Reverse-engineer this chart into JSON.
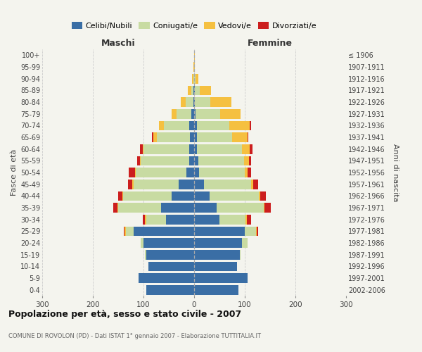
{
  "age_groups": [
    "0-4",
    "5-9",
    "10-14",
    "15-19",
    "20-24",
    "25-29",
    "30-34",
    "35-39",
    "40-44",
    "45-49",
    "50-54",
    "55-59",
    "60-64",
    "65-69",
    "70-74",
    "75-79",
    "80-84",
    "85-89",
    "90-94",
    "95-99",
    "100+"
  ],
  "birth_years": [
    "2002-2006",
    "1997-2001",
    "1992-1996",
    "1987-1991",
    "1982-1986",
    "1977-1981",
    "1972-1976",
    "1967-1971",
    "1962-1966",
    "1957-1961",
    "1952-1956",
    "1947-1951",
    "1942-1946",
    "1937-1941",
    "1932-1936",
    "1927-1931",
    "1922-1926",
    "1917-1921",
    "1912-1916",
    "1907-1911",
    "≤ 1906"
  ],
  "maschi": {
    "celibi": [
      95,
      110,
      90,
      95,
      100,
      120,
      55,
      65,
      45,
      30,
      15,
      10,
      10,
      8,
      10,
      5,
      2,
      1,
      0,
      0,
      0
    ],
    "coniugati": [
      0,
      0,
      0,
      2,
      5,
      15,
      40,
      85,
      95,
      90,
      100,
      95,
      90,
      65,
      50,
      30,
      15,
      5,
      2,
      0,
      0
    ],
    "vedovi": [
      0,
      0,
      0,
      0,
      0,
      2,
      2,
      2,
      2,
      2,
      2,
      2,
      2,
      8,
      10,
      10,
      10,
      6,
      2,
      1,
      0
    ],
    "divorziati": [
      0,
      0,
      0,
      0,
      0,
      2,
      5,
      8,
      8,
      8,
      12,
      5,
      5,
      2,
      0,
      0,
      0,
      0,
      0,
      0,
      0
    ]
  },
  "femmine": {
    "nubili": [
      88,
      105,
      85,
      90,
      95,
      100,
      50,
      45,
      30,
      20,
      10,
      8,
      5,
      5,
      5,
      3,
      2,
      1,
      0,
      0,
      0
    ],
    "coniugate": [
      0,
      0,
      0,
      2,
      10,
      22,
      52,
      92,
      98,
      92,
      90,
      90,
      90,
      70,
      65,
      48,
      30,
      10,
      3,
      0,
      0
    ],
    "vedove": [
      0,
      0,
      0,
      0,
      0,
      2,
      2,
      2,
      2,
      5,
      5,
      10,
      15,
      30,
      40,
      40,
      42,
      22,
      6,
      2,
      1
    ],
    "divorziate": [
      0,
      0,
      0,
      0,
      0,
      3,
      8,
      12,
      12,
      10,
      8,
      5,
      5,
      2,
      2,
      0,
      0,
      0,
      0,
      0,
      0
    ]
  },
  "colors": {
    "celibi": "#3a6ea5",
    "coniugati": "#c8dba2",
    "vedovi": "#f5c040",
    "divorziati": "#cc1e1e"
  },
  "xlim": 300,
  "title": "Popolazione per età, sesso e stato civile - 2007",
  "subtitle": "COMUNE DI ROVOLON (PD) - Dati ISTAT 1° gennaio 2007 - Elaborazione TUTTITALIA.IT",
  "ylabel_left": "Fasce di età",
  "ylabel_right": "Anni di nascita",
  "xlabel_maschi": "Maschi",
  "xlabel_femmine": "Femmine",
  "bg_color": "#f4f4ee",
  "grid_color": "#cccccc"
}
